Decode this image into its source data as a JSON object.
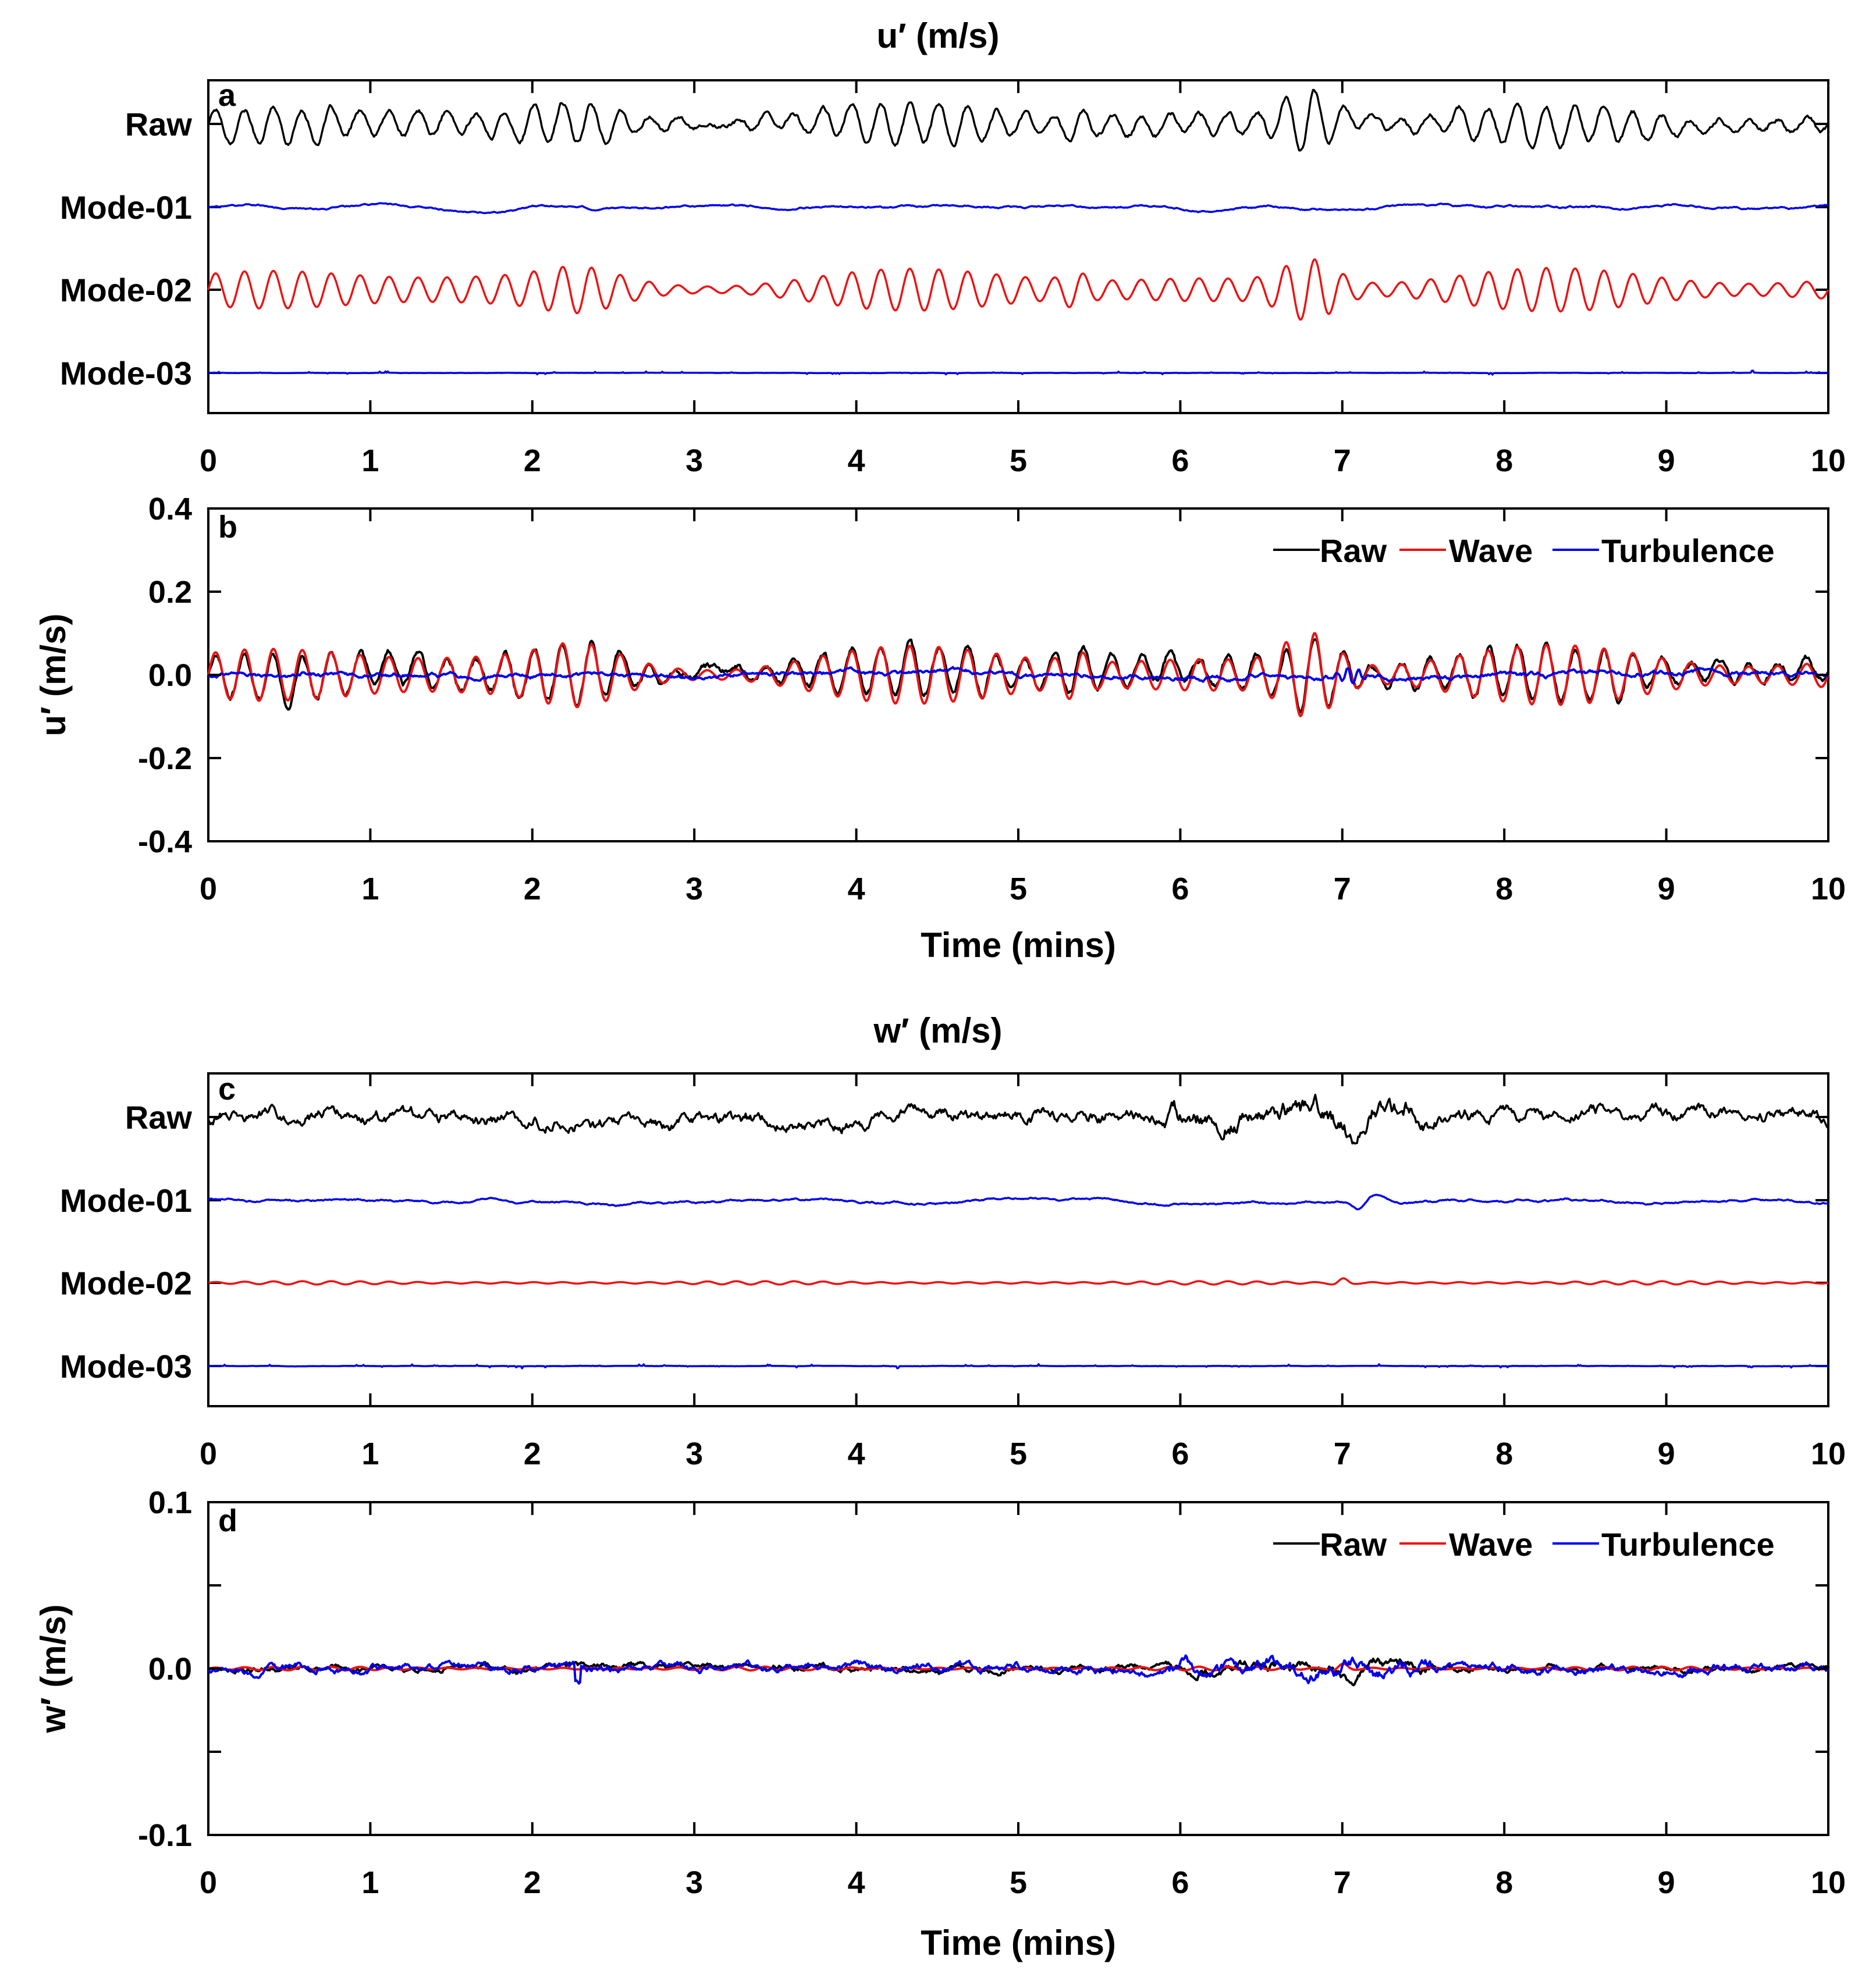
{
  "chart_data": [
    {
      "id": "a",
      "type": "line",
      "title": "u′ (m/s)",
      "panel_label": "a",
      "xlim": [
        0,
        10
      ],
      "xticks": [
        0,
        1,
        2,
        3,
        4,
        5,
        6,
        7,
        8,
        9,
        10
      ],
      "xlabel": "",
      "rows": [
        {
          "name": "Raw",
          "color": "#000000",
          "amplitude": 0.45,
          "kind": "raw-u"
        },
        {
          "name": "Mode-01",
          "color": "#0000ee",
          "amplitude": 0.08,
          "kind": "slow"
        },
        {
          "name": "Mode-02",
          "color": "#ee1111",
          "amplitude": 0.4,
          "kind": "wave-u"
        },
        {
          "name": "Mode-03",
          "color": "#0000ee",
          "amplitude": 0.03,
          "kind": "fast"
        }
      ]
    },
    {
      "id": "b",
      "type": "line",
      "panel_label": "b",
      "xlim": [
        0,
        10
      ],
      "ylim": [
        -0.4,
        0.4
      ],
      "xticks": [
        0,
        1,
        2,
        3,
        4,
        5,
        6,
        7,
        8,
        9,
        10
      ],
      "yticks": [
        0.4,
        0.2,
        0.0,
        -0.2,
        -0.4
      ],
      "ytick_labels": [
        "0.4",
        "0.2",
        "0.0",
        "-0.2",
        "-0.4"
      ],
      "xlabel": "Time (mins)",
      "ylabel": "u′ (m/s)",
      "legend": [
        "Raw",
        "Wave",
        "Turbulence"
      ],
      "series": [
        {
          "name": "Raw",
          "color": "#000000",
          "kind": "raw-u",
          "scale": 0.09
        },
        {
          "name": "Wave",
          "color": "#ee1111",
          "kind": "wave-u",
          "scale": 0.1
        },
        {
          "name": "Turbulence",
          "color": "#0000ee",
          "kind": "turb-u",
          "scale": 0.02
        }
      ]
    },
    {
      "id": "c",
      "type": "line",
      "title": "w′ (m/s)",
      "panel_label": "c",
      "xlim": [
        0,
        10
      ],
      "xticks": [
        0,
        1,
        2,
        3,
        4,
        5,
        6,
        7,
        8,
        9,
        10
      ],
      "xlabel": "",
      "rows": [
        {
          "name": "Raw",
          "color": "#000000",
          "amplitude": 0.35,
          "kind": "raw-w"
        },
        {
          "name": "Mode-01",
          "color": "#0000ee",
          "amplitude": 0.12,
          "kind": "slow-w"
        },
        {
          "name": "Mode-02",
          "color": "#ee1111",
          "amplitude": 0.06,
          "kind": "wave-w"
        },
        {
          "name": "Mode-03",
          "color": "#0000ee",
          "amplitude": 0.03,
          "kind": "fast"
        }
      ]
    },
    {
      "id": "d",
      "type": "line",
      "panel_label": "d",
      "xlim": [
        0,
        10
      ],
      "ylim": [
        -0.1,
        0.1
      ],
      "xticks": [
        0,
        1,
        2,
        3,
        4,
        5,
        6,
        7,
        8,
        9,
        10
      ],
      "yticks": [
        0.1,
        0.05,
        0.0,
        -0.05,
        -0.1
      ],
      "ytick_labels": [
        "0.1",
        "",
        "0.0",
        "",
        "-0.1"
      ],
      "xlabel": "Time (mins)",
      "ylabel": "w′ (m/s)",
      "legend": [
        "Raw",
        "Wave",
        "Turbulence"
      ],
      "series": [
        {
          "name": "Raw",
          "color": "#000000",
          "kind": "raw-w",
          "scale": 0.01
        },
        {
          "name": "Wave",
          "color": "#ee1111",
          "kind": "wave-w",
          "scale": 0.003
        },
        {
          "name": "Turbulence",
          "color": "#0000ee",
          "kind": "turb-w",
          "scale": 0.009
        }
      ]
    }
  ]
}
